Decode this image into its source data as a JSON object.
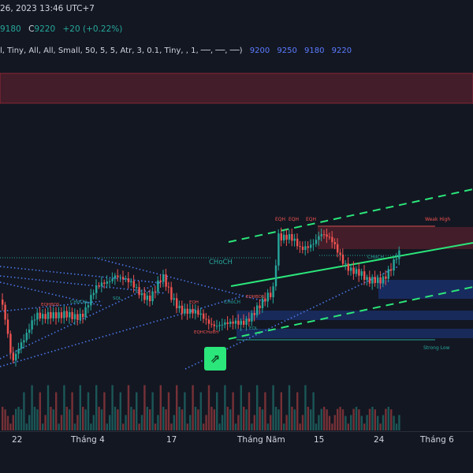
{
  "header": {
    "datetime": "26, 2023 13:46 UTC+7",
    "ohlc_low": "9180",
    "close_label": "C",
    "close_value": "9220",
    "change": "+20 (+0.22%)",
    "indicator_params": "l, Tiny, All, All, Small, 50, 5, 5, Atr, 3, 0.1, Tiny, , 1, ──, ──, ──)",
    "indicator_values": [
      "9200",
      "9250",
      "9180",
      "9220"
    ]
  },
  "labels": {
    "choch_big": "CHoCH",
    "weak_high": "Weak High",
    "strong_low": "Strong Low",
    "eqh": [
      "EQH",
      "EQH",
      "EQH"
    ],
    "choch_small": [
      "CHoCH",
      "CHoCH",
      "CHoCH"
    ],
    "eqh_small": [
      "EQHBOS",
      "EQHBOS",
      "EQHCHoCH",
      "EQH"
    ],
    "sql": [
      "SQL",
      "EQL"
    ]
  },
  "x_axis": [
    "22",
    "Tháng 4",
    "17",
    "Tháng Năm",
    "15",
    "24",
    "Tháng 6"
  ],
  "button": {
    "icon": "arrow-up-right-icon",
    "glyph": "⇗"
  },
  "colors": {
    "bull": "#26a69a",
    "bear": "#ef5350",
    "trend_green": "#2be67a",
    "dotted_blue": "#4a78e8",
    "zone_red": "rgba(242,54,69,0.22)",
    "zone_blue": "rgba(41,98,255,0.22)",
    "background": "#131722"
  }
}
